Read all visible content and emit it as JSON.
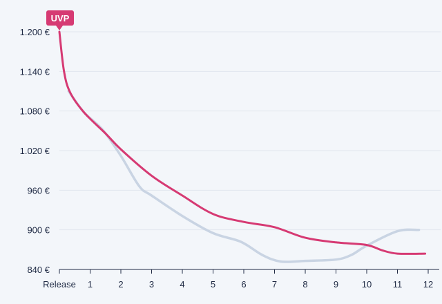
{
  "chart_data": {
    "type": "line",
    "title": "",
    "xlabel": "",
    "ylabel": "",
    "x_tick_labels": [
      "Release",
      "1",
      "2",
      "3",
      "4",
      "5",
      "6",
      "7",
      "8",
      "9",
      "10",
      "11",
      "12"
    ],
    "xlim": [
      0,
      12
    ],
    "ylim": [
      840,
      1200
    ],
    "y_ticks": [
      840,
      900,
      960,
      1020,
      1080,
      1140,
      1200
    ],
    "y_tick_labels": [
      "840 €",
      "900 €",
      "960 €",
      "1.020 €",
      "1.080 €",
      "1.140 €",
      "1.200 €"
    ],
    "grid": true,
    "annotation": {
      "text": "UVP",
      "x": 0,
      "y": 1200,
      "color": "#d63a73"
    },
    "series": [
      {
        "color": "#c9d4e3",
        "x": [
          0.3,
          0.8,
          1.4,
          2.0,
          2.6,
          3.0,
          4.0,
          5.0,
          5.9,
          6.6,
          7.2,
          8.0,
          9.0,
          9.5,
          10.0,
          11.0,
          11.7
        ],
        "y": [
          1110,
          1078,
          1052,
          1012,
          966,
          952,
          921,
          895,
          882,
          862,
          852,
          853,
          855,
          862,
          876,
          898,
          900
        ]
      },
      {
        "color": "#d63a73",
        "x": [
          0,
          0.15,
          0.35,
          0.8,
          1.5,
          2.0,
          3.0,
          4.0,
          5.0,
          6.0,
          7.0,
          8.0,
          9.0,
          10.0,
          10.5,
          11.0,
          11.9
        ],
        "y": [
          1200,
          1140,
          1108,
          1078,
          1046,
          1022,
          982,
          952,
          924,
          912,
          904,
          888,
          881,
          877,
          869,
          864,
          864
        ]
      }
    ]
  }
}
